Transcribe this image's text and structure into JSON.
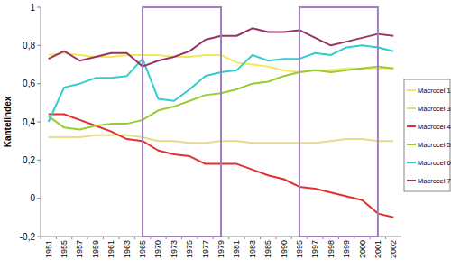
{
  "chart_data": {
    "type": "line",
    "y_label": "Kantelindex",
    "categories": [
      "1951",
      "1955",
      "1957",
      "1959",
      "1961",
      "1963",
      "1965",
      "1970",
      "1973",
      "1975",
      "1977",
      "1979",
      "1981",
      "1983",
      "1985",
      "1990",
      "1995",
      "1997",
      "1998",
      "1999",
      "2000",
      "2001",
      "2002"
    ],
    "series": [
      {
        "name": "Macrocel 1",
        "color": "#f2e85a",
        "values": [
          0.75,
          0.76,
          0.75,
          0.74,
          0.74,
          0.75,
          0.75,
          0.75,
          0.74,
          0.74,
          0.75,
          0.75,
          0.71,
          0.7,
          0.69,
          0.67,
          0.66,
          0.67,
          0.67,
          0.68,
          0.68,
          0.68,
          0.68
        ]
      },
      {
        "name": "Macrocel 3",
        "color": "#e3dc8c",
        "values": [
          0.32,
          0.32,
          0.32,
          0.33,
          0.33,
          0.33,
          0.32,
          0.3,
          0.3,
          0.29,
          0.29,
          0.3,
          0.3,
          0.29,
          0.29,
          0.29,
          0.29,
          0.29,
          0.3,
          0.31,
          0.31,
          0.3,
          0.3
        ]
      },
      {
        "name": "Macrocel 4",
        "color": "#e03030",
        "values": [
          0.44,
          0.44,
          0.41,
          0.38,
          0.35,
          0.31,
          0.3,
          0.25,
          0.23,
          0.22,
          0.18,
          0.18,
          0.18,
          0.15,
          0.12,
          0.1,
          0.06,
          0.05,
          0.03,
          0.01,
          -0.01,
          -0.08,
          -0.1
        ]
      },
      {
        "name": "Macrocel 5",
        "color": "#99cc33",
        "values": [
          0.43,
          0.37,
          0.36,
          0.38,
          0.39,
          0.39,
          0.41,
          0.46,
          0.48,
          0.51,
          0.54,
          0.55,
          0.57,
          0.6,
          0.61,
          0.64,
          0.66,
          0.67,
          0.66,
          0.67,
          0.68,
          0.69,
          0.68
        ]
      },
      {
        "name": "Macrocel 6",
        "color": "#33cccc",
        "values": [
          0.4,
          0.58,
          0.6,
          0.63,
          0.63,
          0.64,
          0.73,
          0.52,
          0.51,
          0.57,
          0.64,
          0.66,
          0.67,
          0.75,
          0.72,
          0.73,
          0.73,
          0.76,
          0.75,
          0.79,
          0.8,
          0.79,
          0.77
        ]
      },
      {
        "name": "Macrocel 7",
        "color": "#993366",
        "values": [
          0.73,
          0.77,
          0.72,
          0.74,
          0.76,
          0.76,
          0.69,
          0.72,
          0.74,
          0.77,
          0.83,
          0.85,
          0.85,
          0.89,
          0.87,
          0.87,
          0.88,
          0.84,
          0.8,
          0.82,
          0.84,
          0.86,
          0.85
        ]
      }
    ],
    "ylim": [
      -0.2,
      1
    ],
    "yticks": [
      {
        "value": -0.2,
        "label": "-0,2"
      },
      0,
      {
        "value": 0.2,
        "label": "0,2"
      },
      {
        "value": 0.4,
        "label": "0,4"
      },
      {
        "value": 0.6,
        "label": "0,6"
      },
      {
        "value": 0.8,
        "label": "0,8"
      },
      1
    ],
    "annotations": [
      {
        "from": "1965",
        "to": "1979"
      },
      {
        "from": "1995",
        "to": "2001"
      }
    ],
    "grid": false,
    "legend": "right"
  }
}
